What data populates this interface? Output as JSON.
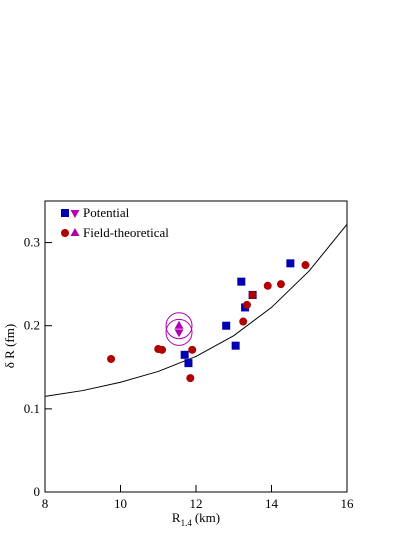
{
  "chart_data": {
    "type": "scatter",
    "xlabel": {
      "main": "R",
      "sub": "1.4",
      "unit": "(km)"
    },
    "ylabel": "δ R (fm)",
    "xlim": [
      8,
      16
    ],
    "xticks": [
      8,
      10,
      12,
      14,
      16
    ],
    "ylim": [
      0,
      0.35
    ],
    "yticks": [
      0,
      0.1,
      0.2,
      0.3
    ],
    "legend": "top-left",
    "series": [
      {
        "name": "Potential",
        "color": "#0000b0",
        "marker": "square",
        "x": [
          11.7,
          11.8,
          12.8,
          13.05,
          13.2,
          13.3,
          13.5,
          14.5
        ],
        "values": [
          0.165,
          0.155,
          0.2,
          0.176,
          0.253,
          0.222,
          0.237,
          0.275
        ],
        "extra": {
          "color": "#b000b0",
          "marker": "triangle-down",
          "x": [
            11.55
          ],
          "values": [
            0.192
          ]
        }
      },
      {
        "name": "Field-theoretical",
        "color": "#b00000",
        "marker": "circle",
        "x": [
          9.75,
          11.0,
          11.1,
          11.9,
          11.85,
          13.25,
          13.35,
          13.5,
          13.9,
          14.25,
          14.9
        ],
        "values": [
          0.16,
          0.172,
          0.171,
          0.171,
          0.137,
          0.205,
          0.225,
          0.237,
          0.248,
          0.25,
          0.273
        ],
        "extra": {
          "color": "#b000b0",
          "marker": "triangle-up",
          "x": [
            11.55
          ],
          "values": [
            0.2
          ]
        }
      }
    ],
    "curve": {
      "color": "#000000",
      "x": [
        8,
        9,
        10,
        11,
        12,
        13,
        14,
        15,
        16
      ],
      "values": [
        0.115,
        0.122,
        0.132,
        0.145,
        0.163,
        0.188,
        0.222,
        0.266,
        0.322
      ]
    }
  }
}
